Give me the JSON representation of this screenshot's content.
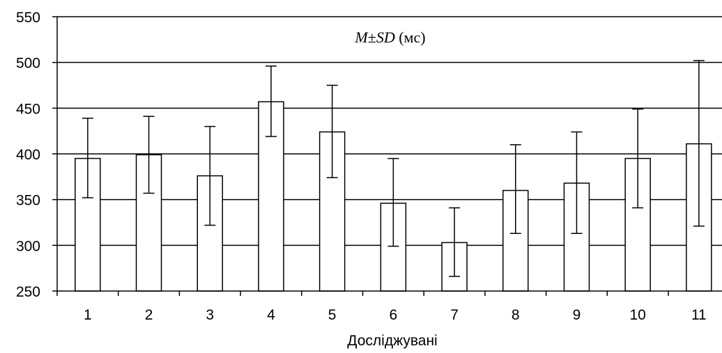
{
  "chart_data": {
    "type": "bar",
    "categories": [
      "1",
      "2",
      "3",
      "4",
      "5",
      "6",
      "7",
      "8",
      "9",
      "10",
      "11"
    ],
    "values": [
      395,
      399,
      376,
      457,
      424,
      346,
      303,
      360,
      368,
      395,
      411
    ],
    "error_low": [
      352,
      357,
      322,
      419,
      374,
      299,
      266,
      313,
      313,
      341,
      321
    ],
    "error_high": [
      439,
      441,
      430,
      496,
      475,
      395,
      341,
      410,
      424,
      449,
      502
    ],
    "annotation": {
      "main": "M±SD",
      "unit": " (мс)"
    },
    "xlabel": "Досліджувані",
    "ylabel": "",
    "ylim": [
      250,
      550
    ],
    "yticks": [
      "250",
      "300",
      "350",
      "400",
      "450",
      "500",
      "550"
    ],
    "grid": true,
    "colors": {
      "bar_fill": "#ffffff",
      "bar_stroke": "#000000",
      "grid": "#000000",
      "background": "#ffffff"
    }
  }
}
